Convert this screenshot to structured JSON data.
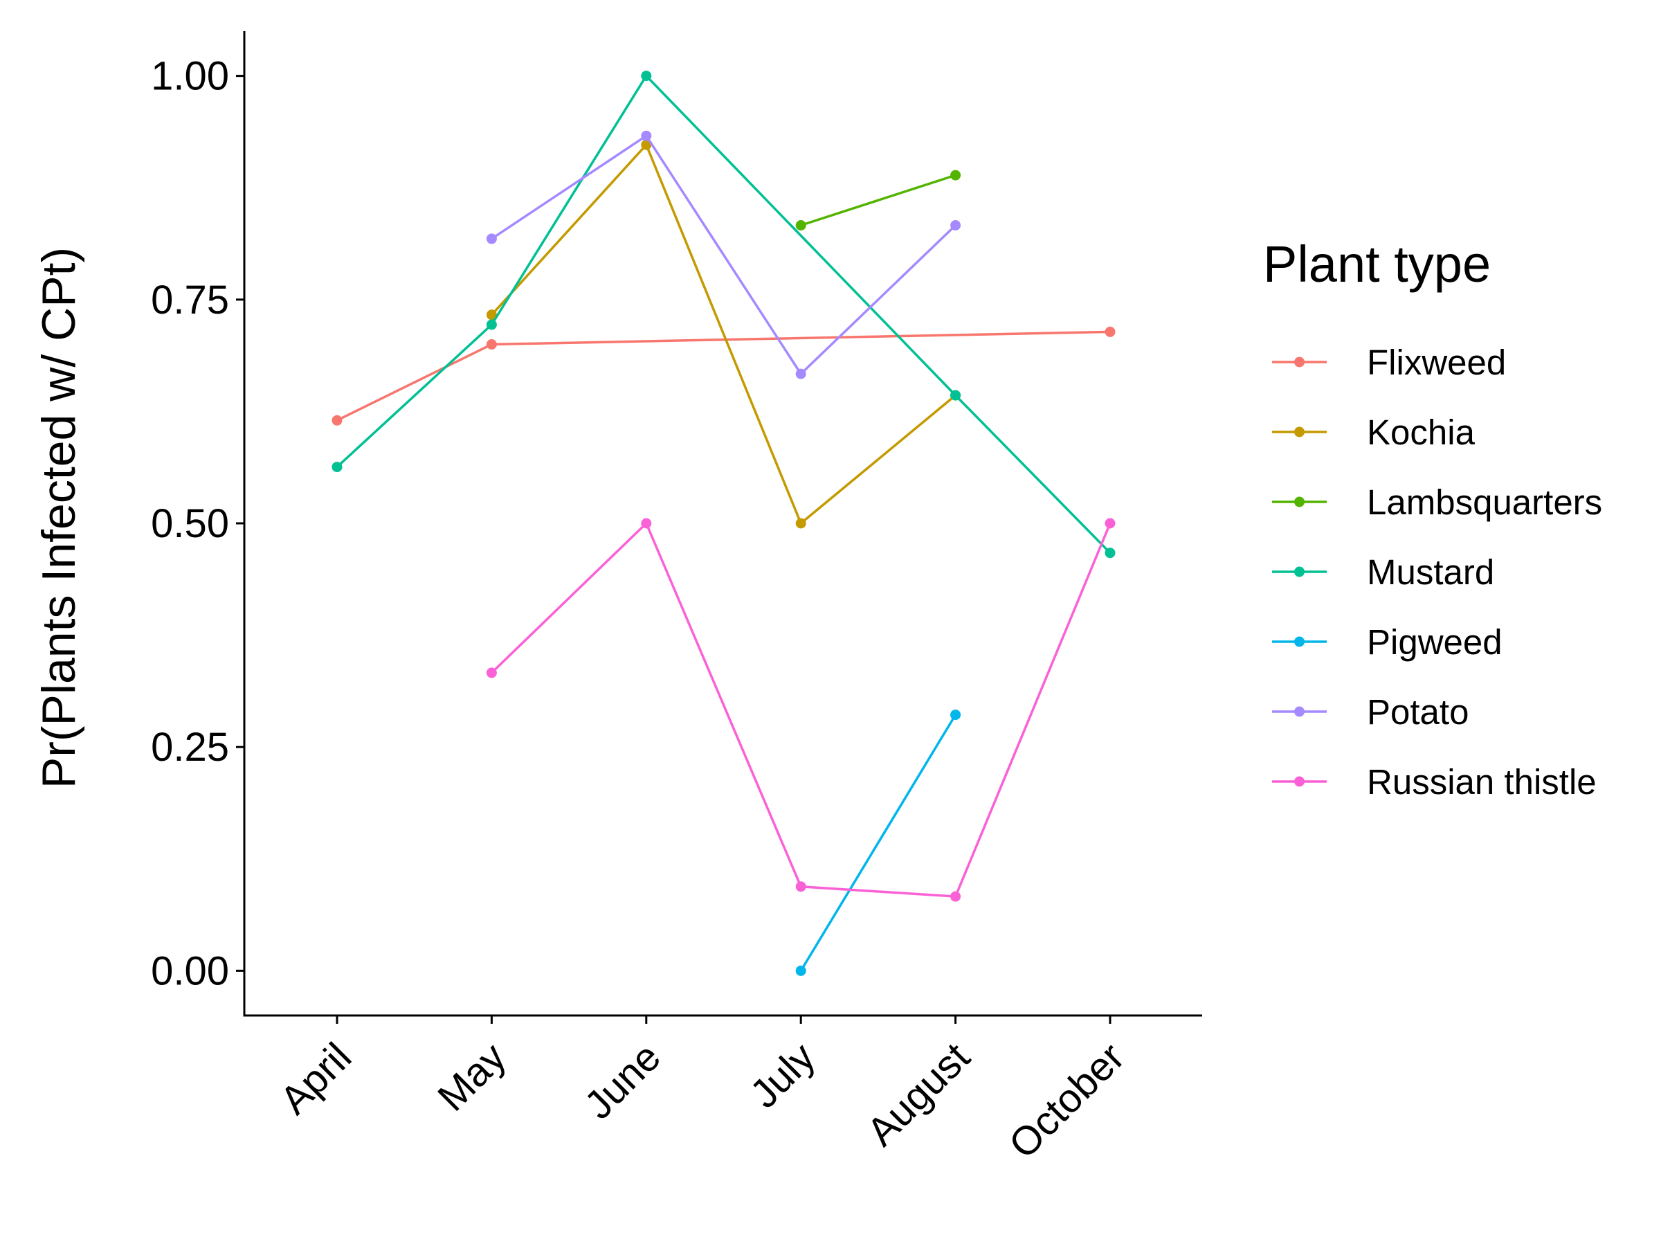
{
  "chart_data": {
    "type": "line",
    "title": "",
    "xlabel": "",
    "ylabel": "Pr(Plants Infected w/ CPt)",
    "categories": [
      "April",
      "May",
      "June",
      "July",
      "August",
      "October"
    ],
    "ylim": [
      -0.05,
      1.05
    ],
    "yticks": [
      0,
      0.25,
      0.5,
      0.75,
      1
    ],
    "ytick_labels": [
      "0.00",
      "0.25",
      "0.50",
      "0.75",
      "1.00"
    ],
    "grid": false,
    "legend_title": "Plant type",
    "legend_position": "right",
    "series": [
      {
        "name": "Flixweed",
        "color": "#F8766D",
        "values": [
          0.615,
          0.7,
          null,
          null,
          null,
          0.714
        ]
      },
      {
        "name": "Kochia",
        "color": "#C49A00",
        "values": [
          null,
          0.733,
          0.923,
          0.5,
          0.643,
          null
        ]
      },
      {
        "name": "Lambsquarters",
        "color": "#53B400",
        "values": [
          null,
          null,
          null,
          0.833,
          0.889,
          null
        ]
      },
      {
        "name": "Mustard",
        "color": "#00C094",
        "values": [
          0.563,
          0.722,
          1.0,
          null,
          0.643,
          0.467
        ]
      },
      {
        "name": "Pigweed",
        "color": "#00B6EB",
        "values": [
          null,
          null,
          null,
          0.0,
          0.286,
          null
        ]
      },
      {
        "name": "Potato",
        "color": "#A58AFF",
        "values": [
          null,
          0.818,
          0.933,
          0.667,
          0.833,
          null
        ]
      },
      {
        "name": "Russian thistle",
        "color": "#FB61D7",
        "values": [
          null,
          0.333,
          0.5,
          0.094,
          0.083,
          0.5
        ]
      }
    ]
  }
}
